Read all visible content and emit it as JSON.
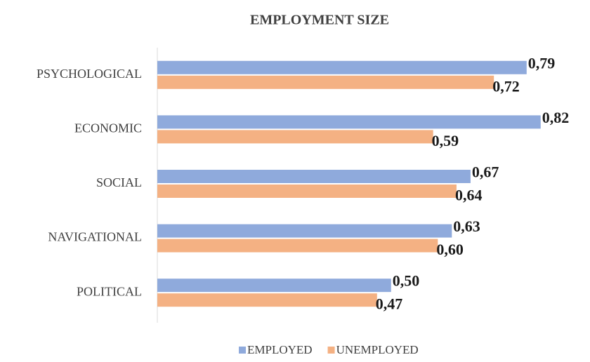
{
  "chart_data": {
    "type": "bar",
    "orientation": "horizontal",
    "title": "EMPLOYMENT SIZE",
    "categories": [
      "PSYCHOLOGICAL",
      "ECONOMIC",
      "SOCIAL",
      "NAVIGATIONAL",
      "POLITICAL"
    ],
    "series": [
      {
        "name": "EMPLOYED",
        "color": "#8faadc",
        "values": [
          0.79,
          0.82,
          0.67,
          0.63,
          0.5
        ],
        "value_labels": [
          "0,79",
          "0,82",
          "0,67",
          "0,63",
          "0,50"
        ]
      },
      {
        "name": "UNEMPLOYED",
        "color": "#f4b183",
        "values": [
          0.72,
          0.59,
          0.64,
          0.6,
          0.47
        ],
        "value_labels": [
          "0,72",
          "0,59",
          "0,64",
          "0,60",
          "0,47"
        ]
      }
    ],
    "xlim": [
      0,
      0.9
    ],
    "legend": "bottom"
  }
}
